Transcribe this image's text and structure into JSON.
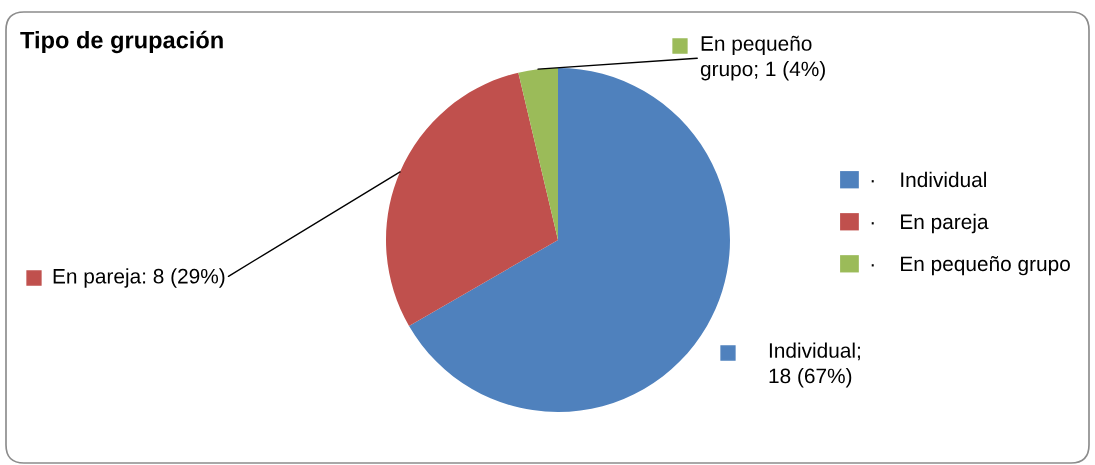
{
  "chart_data": {
    "type": "pie",
    "title": "Tipo de grupación",
    "categories": [
      "·    Individual",
      "·    En pareja",
      "·    En pequeño grupo"
    ],
    "values": [
      18,
      8,
      1
    ],
    "colors": [
      "#4f81bd",
      "#c0504d",
      "#9bbb59"
    ],
    "value_labels": [
      "Individual;\n18 (67%)",
      "En pareja: 8 (29%)",
      "En pequeño\ngrupo; 1 (4%)"
    ],
    "legend": "right"
  }
}
